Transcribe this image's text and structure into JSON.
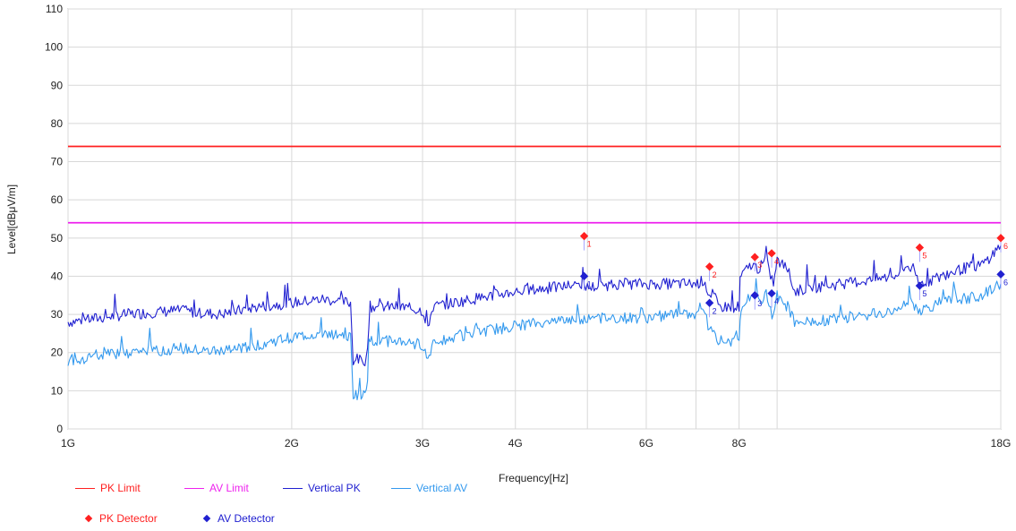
{
  "chart_data": {
    "type": "line",
    "xlabel": "Frequency[Hz]",
    "ylabel": "Level[dBμV/m]",
    "xscale": "log",
    "xlim": [
      1,
      18
    ],
    "ylim": [
      0,
      110
    ],
    "x_ticks": [
      {
        "value": 1,
        "label": "1G"
      },
      {
        "value": 2,
        "label": "2G"
      },
      {
        "value": 3,
        "label": "3G"
      },
      {
        "value": 4,
        "label": "4G"
      },
      {
        "value": 6,
        "label": "6G"
      },
      {
        "value": 8,
        "label": "8G"
      },
      {
        "value": 18,
        "label": "18G"
      }
    ],
    "x_gridlines": [
      1,
      2,
      3,
      4,
      5,
      6,
      7,
      8,
      9,
      18
    ],
    "y_ticks": [
      0,
      10,
      20,
      30,
      40,
      50,
      60,
      70,
      80,
      90,
      100,
      110
    ],
    "grid": true,
    "limits": [
      {
        "name": "PK Limit",
        "value": 74,
        "color": "#ff2020"
      },
      {
        "name": "AV Limit",
        "value": 54,
        "color": "#ee22ee"
      }
    ],
    "series": [
      {
        "name": "Vertical PK",
        "color": "#2020d0",
        "x": [
          1.0,
          1.2,
          1.4,
          1.6,
          1.8,
          2.0,
          2.2,
          2.4,
          2.42,
          2.52,
          2.55,
          2.8,
          3.0,
          3.05,
          3.1,
          3.5,
          4.0,
          4.5,
          4.95,
          5.0,
          5.5,
          6.0,
          6.5,
          7.0,
          7.2,
          7.3,
          7.4,
          7.5,
          7.8,
          8.0,
          8.05,
          8.3,
          8.5,
          8.7,
          8.9,
          9.0,
          9.3,
          9.5,
          10.0,
          11.0,
          12.0,
          13.0,
          13.5,
          14.0,
          15.0,
          16.0,
          17.0,
          18.0
        ],
        "values": [
          28,
          30,
          31,
          30,
          32,
          33,
          34,
          33,
          18,
          18,
          32,
          32,
          31,
          27,
          32,
          34,
          36,
          37,
          38,
          37,
          38,
          38,
          38,
          38,
          39,
          33,
          35,
          32,
          32,
          32,
          40,
          43,
          42,
          44,
          38,
          44,
          42,
          36,
          37,
          38,
          39,
          40,
          43,
          38,
          40,
          42,
          43,
          48
        ]
      },
      {
        "name": "Vertical AV",
        "color": "#3399ee",
        "x": [
          1.0,
          1.2,
          1.4,
          1.6,
          1.8,
          2.0,
          2.2,
          2.4,
          2.42,
          2.52,
          2.55,
          2.8,
          3.0,
          3.05,
          3.1,
          3.5,
          4.0,
          4.5,
          4.95,
          5.0,
          5.5,
          6.0,
          6.5,
          7.0,
          7.2,
          7.3,
          7.4,
          7.5,
          7.8,
          8.0,
          8.05,
          8.3,
          8.5,
          8.7,
          8.9,
          9.0,
          9.3,
          9.5,
          10.0,
          11.0,
          12.0,
          13.0,
          13.5,
          14.0,
          15.0,
          16.0,
          17.0,
          18.0
        ],
        "values": [
          18,
          20,
          21,
          20,
          22,
          24,
          25,
          24,
          9,
          9,
          23,
          23,
          22,
          18,
          23,
          25,
          27,
          28,
          29,
          29,
          29,
          29,
          30,
          30,
          31,
          25,
          27,
          23,
          23,
          23,
          31,
          35,
          33,
          35,
          29,
          35,
          32,
          28,
          28,
          29,
          30,
          31,
          34,
          31,
          33,
          34,
          35,
          38
        ]
      }
    ],
    "markers": {
      "pk": {
        "name": "PK Detector",
        "color": "#ff2020",
        "points": [
          {
            "label": "1",
            "x": 4.95,
            "y": 50.5
          },
          {
            "label": "2",
            "x": 7.3,
            "y": 42.5
          },
          {
            "label": "3",
            "x": 8.4,
            "y": 45.0
          },
          {
            "label": "4",
            "x": 8.85,
            "y": 46.0
          },
          {
            "label": "5",
            "x": 14.0,
            "y": 47.5
          },
          {
            "label": "6",
            "x": 18.0,
            "y": 50.0
          }
        ]
      },
      "av": {
        "name": "AV Detector",
        "color": "#2020d0",
        "points": [
          {
            "label": "1",
            "x": 4.95,
            "y": 40.0
          },
          {
            "label": "2",
            "x": 7.3,
            "y": 33.0
          },
          {
            "label": "3",
            "x": 8.4,
            "y": 35.0
          },
          {
            "label": "4",
            "x": 8.85,
            "y": 35.5
          },
          {
            "label": "5",
            "x": 14.0,
            "y": 37.5
          },
          {
            "label": "6",
            "x": 18.0,
            "y": 40.5
          }
        ]
      }
    }
  }
}
